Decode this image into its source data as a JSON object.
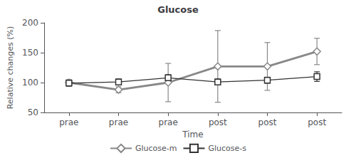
{
  "chart_data": {
    "type": "line",
    "title": "Glucose",
    "x_label": "Time",
    "y_label": "Relative changes (%)",
    "categories": [
      "prae",
      "prae",
      "prae",
      "post",
      "post",
      "post"
    ],
    "series": [
      {
        "name": "Glucose-m",
        "color": "#888888",
        "marker": "diamond",
        "values": [
          100,
          88,
          100,
          127,
          127,
          152
        ],
        "errors": [
          5,
          5,
          32,
          60,
          40,
          22
        ]
      },
      {
        "name": "Glucose-s",
        "color": "#333333",
        "marker": "square",
        "values": [
          99,
          101,
          108,
          101,
          104,
          110
        ],
        "errors": [
          5,
          5,
          5,
          5,
          5,
          8
        ]
      }
    ],
    "ylim": [
      50,
      200
    ],
    "yticks": [
      50,
      100,
      150,
      200
    ],
    "grid": false,
    "legend": "bottom"
  }
}
